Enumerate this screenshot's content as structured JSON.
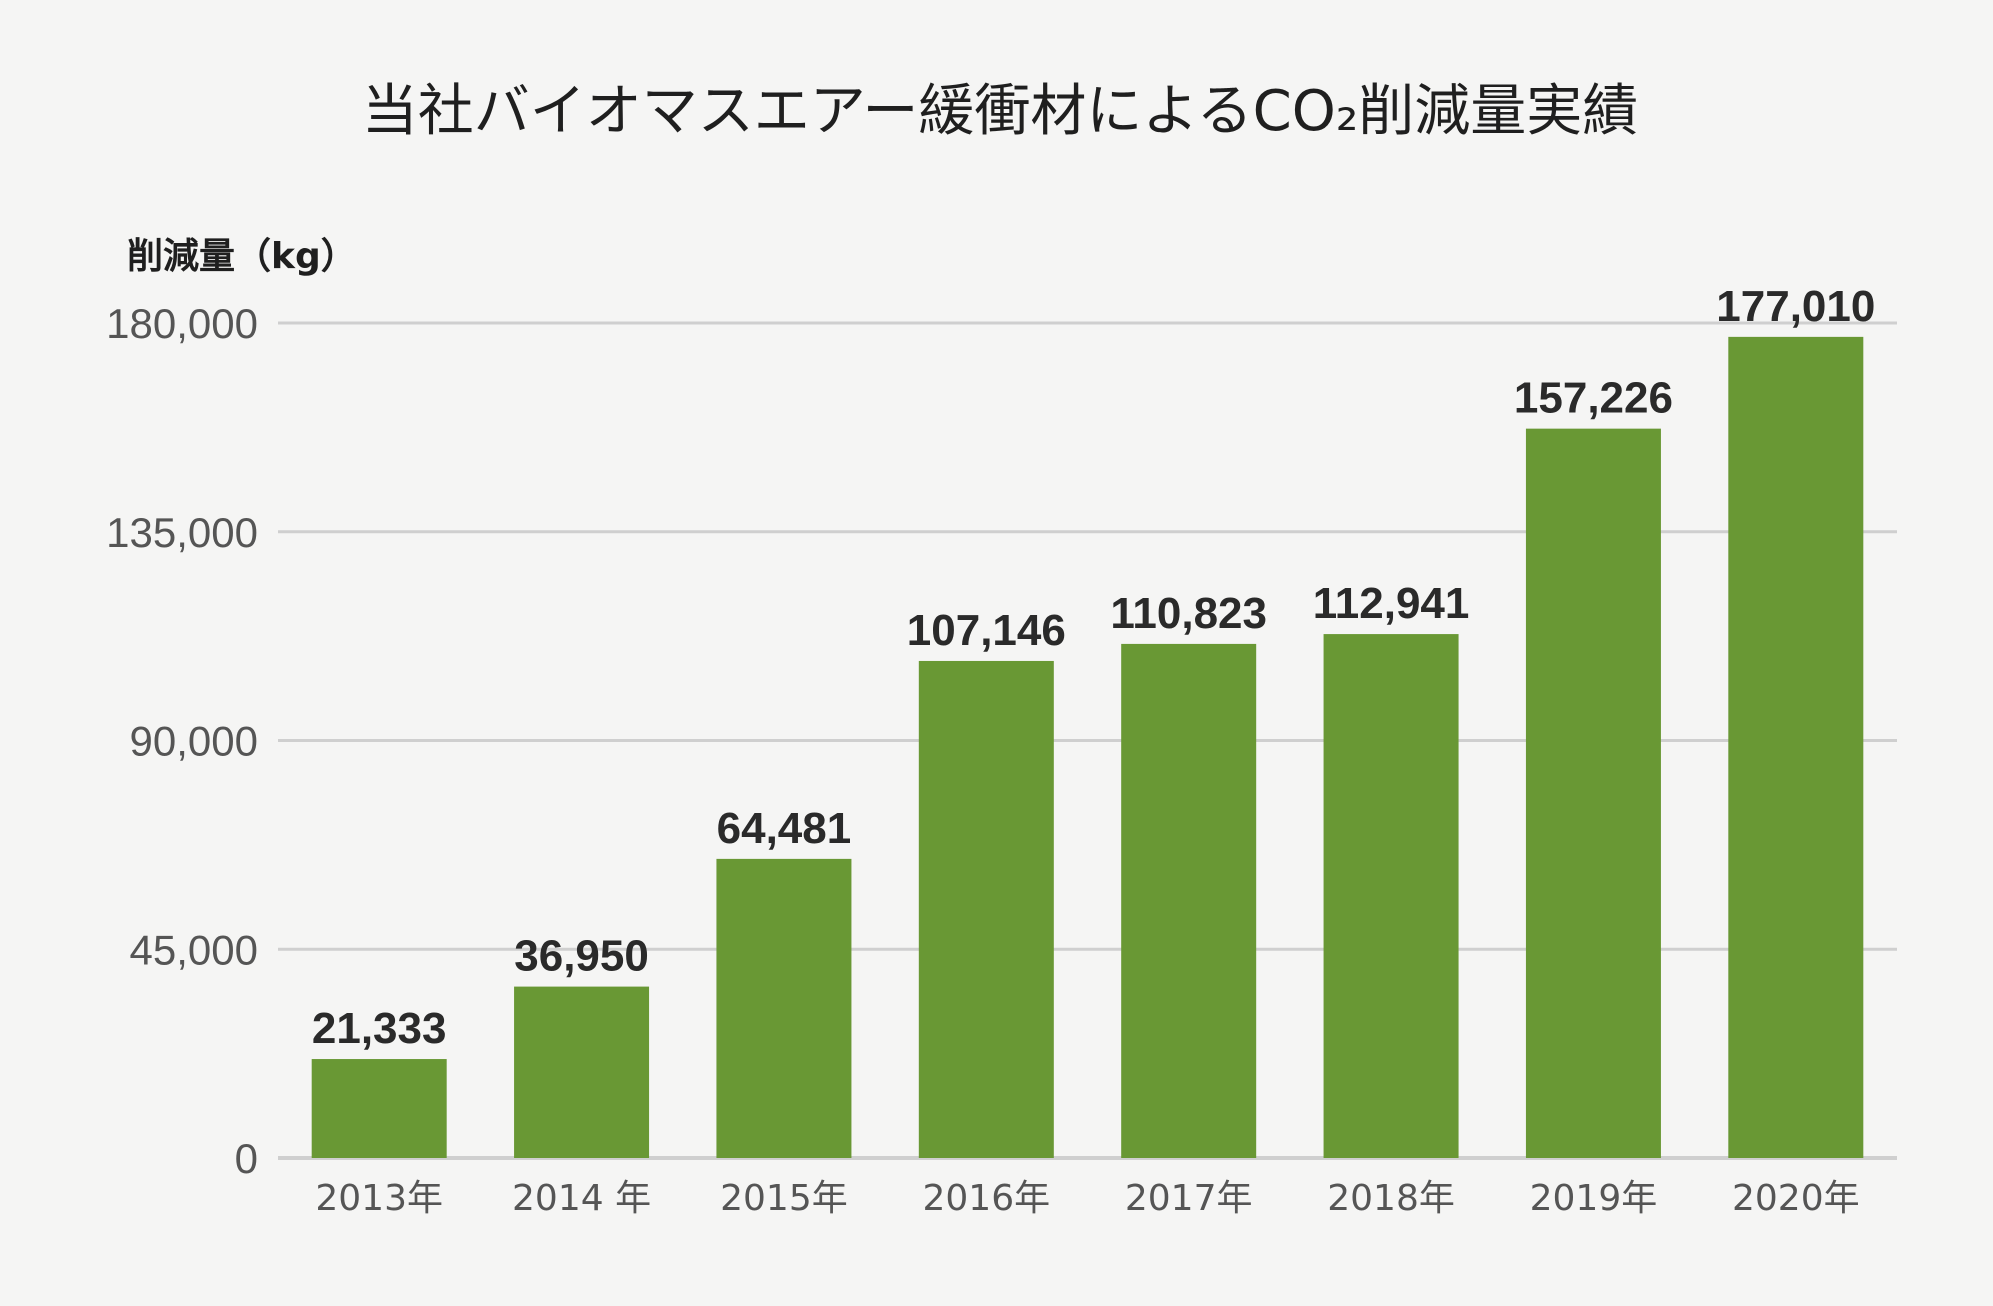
{
  "chart_data": {
    "type": "bar",
    "title": "当社バイオマスエアー緩衝材によるCO₂削減量実績",
    "ylabel": "削減量（kg）",
    "xlabel": "",
    "categories": [
      "2013年",
      "2014 年",
      "2015年",
      "2016年",
      "2017年",
      "2018年",
      "2019年",
      "2020年"
    ],
    "values": [
      21333,
      36950,
      64481,
      107146,
      110823,
      112941,
      157226,
      177010
    ],
    "data_labels": [
      "21,333",
      "36,950",
      "64,481",
      "107,146",
      "110,823",
      "112,941",
      "157,226",
      "177,010"
    ],
    "ylim": [
      0,
      180000
    ],
    "yticks": [
      0,
      45000,
      90000,
      135000,
      180000
    ],
    "ytick_labels": [
      "0",
      "45,000",
      "90,000",
      "135,000",
      "180,000"
    ],
    "grid": true,
    "legend": "none",
    "colors": {
      "bar": "#699834",
      "gridline": "#cfcfcf",
      "background": "#f5f5f4"
    }
  }
}
